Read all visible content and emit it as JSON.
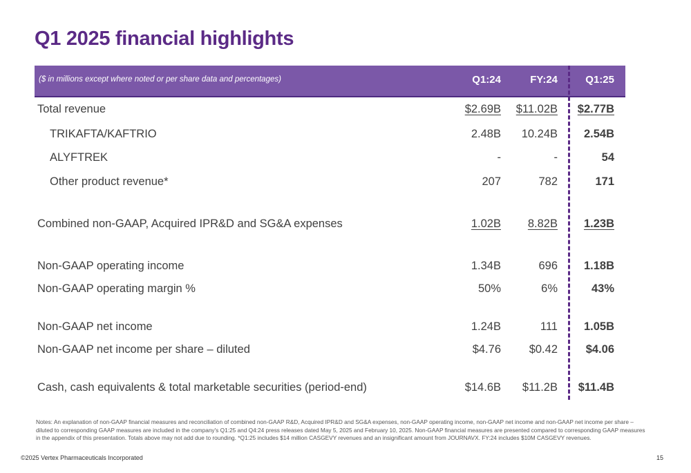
{
  "title": "Q1 2025 financial highlights",
  "header": {
    "note": "($ in millions except where noted or per share data and percentages)",
    "columns": [
      "Q1:24",
      "FY:24",
      "Q1:25"
    ]
  },
  "rows": [
    {
      "label": "Total revenue",
      "values": [
        "$2.69B",
        "$11.02B",
        "$2.77B"
      ]
    },
    {
      "label": "TRIKAFTA/KAFTRIO",
      "values": [
        "2.48B",
        "10.24B",
        "2.54B"
      ]
    },
    {
      "label": "ALYFTREK",
      "values": [
        "-",
        "-",
        "54"
      ]
    },
    {
      "label": "Other product revenue*",
      "values": [
        "207",
        "782",
        "171"
      ]
    },
    {
      "label": "Combined non-GAAP, Acquired IPR&D and SG&A expenses",
      "values": [
        "1.02B",
        "8.82B",
        "1.23B"
      ]
    },
    {
      "label": "Non-GAAP operating income",
      "values": [
        "1.34B",
        "696",
        "1.18B"
      ]
    },
    {
      "label": "Non-GAAP operating margin %",
      "values": [
        "50%",
        "6%",
        "43%"
      ]
    },
    {
      "label": "Non-GAAP net income",
      "values": [
        "1.24B",
        "111",
        "1.05B"
      ]
    },
    {
      "label": "Non-GAAP net income per share – diluted",
      "values": [
        "$4.76",
        "$0.42",
        "$4.06"
      ]
    },
    {
      "label": "Cash, cash equivalents & total marketable securities (period-end)",
      "values": [
        "$14.6B",
        "$11.2B",
        "$11.4B"
      ]
    }
  ],
  "notes": "Notes: An explanation of non-GAAP financial measures and reconciliation of combined non-GAAP R&D, Acquired IPR&D and SG&A expenses, non-GAAP operating income, non-GAAP net income and non-GAAP net income per share – diluted to corresponding GAAP measures are included in the company's Q1:25 and Q4:24 press releases dated May 5, 2025 and February 10, 2025. Non-GAAP financial measures are presented compared to corresponding GAAP measures in the appendix of this presentation. Totals above may not add due to rounding. *Q1:25 includes $14 million CASGEVY revenues and an insignificant amount from JOURNAVX. FY:24 includes $10M CASGEVY revenues.",
  "footer": {
    "copyright": "©2025 Vertex Pharmaceuticals Incorporated",
    "page_number": "15"
  },
  "colors": {
    "title": "#5b2a86",
    "header_bg": "#7b58a8",
    "divider": "#5b2a86"
  }
}
